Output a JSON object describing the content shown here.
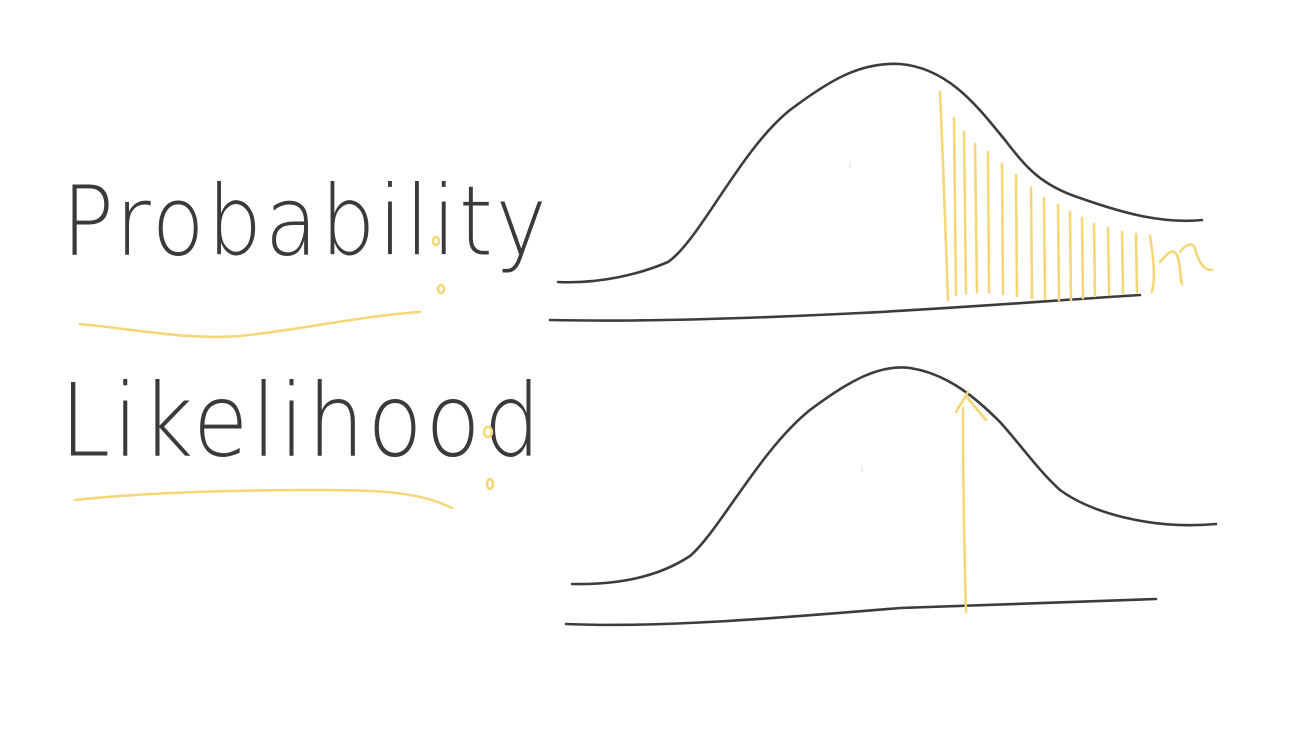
{
  "labels": {
    "probability": "Probability",
    "likelihood": "Likelihood"
  },
  "colors": {
    "ink": "#3c3c3c",
    "highlight": "#f5d77a",
    "background": "#ffffff"
  }
}
